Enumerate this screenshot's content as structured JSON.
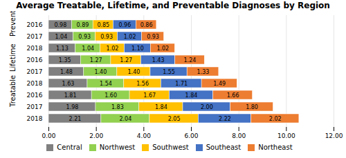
{
  "chart_data": {
    "type": "bar",
    "orientation": "horizontal",
    "stacked": true,
    "data_labels": true,
    "grid": true,
    "legend": "bottom",
    "title": "Average Treatable, Lifetime, and Preventable Diagnoses by Region",
    "group_labels": [
      "Preventable",
      "Lifetime",
      "Treatable"
    ],
    "categories": [
      "2016",
      "2017",
      "2018",
      "2016",
      "2017",
      "2018",
      "2016",
      "2017",
      "2018"
    ],
    "series": [
      {
        "name": "Central",
        "color": "#808080",
        "values": [
          0.98,
          1.04,
          1.13,
          1.35,
          1.48,
          1.63,
          1.81,
          1.98,
          2.21
        ],
        "value_labels": [
          "0.98",
          "1.04",
          "1.13",
          "1.35",
          "1.48",
          "1.63",
          "1.81",
          "1.98",
          "2.21"
        ]
      },
      {
        "name": "Northwest",
        "color": "#92d050",
        "values": [
          0.89,
          0.93,
          1.04,
          1.27,
          1.4,
          1.54,
          1.6,
          1.83,
          2.04
        ],
        "value_labels": [
          "0.89",
          "0.93",
          "1.04",
          "1.27",
          "1.40",
          "1.54",
          "1.60",
          "1.83",
          "2.04"
        ]
      },
      {
        "name": "Southwest",
        "color": "#ffc000",
        "values": [
          0.85,
          0.93,
          1.02,
          1.27,
          1.4,
          1.56,
          1.67,
          1.84,
          2.05
        ],
        "value_labels": [
          "0.85",
          "0.93",
          "1.02",
          "1.27",
          "1.40",
          "1.56",
          "1.67",
          "1.84",
          "2.05"
        ]
      },
      {
        "name": "Southeast",
        "color": "#4472c4",
        "values": [
          0.96,
          1.02,
          1.1,
          1.43,
          1.55,
          1.71,
          1.84,
          2.0,
          2.22
        ],
        "value_labels": [
          "0.96",
          "1.02",
          "1.10",
          "1.43",
          "1.55",
          "1.71",
          "1.84",
          "2.00",
          "2.22"
        ]
      },
      {
        "name": "Northeast",
        "color": "#ed7d31",
        "values": [
          0.86,
          0.93,
          1.02,
          1.24,
          1.33,
          1.49,
          1.66,
          1.8,
          2.02
        ],
        "value_labels": [
          "0.86",
          "0.93",
          "1.02",
          "1.24",
          "1.33",
          "1.49",
          "1.66",
          "1.80",
          "2.02"
        ]
      }
    ],
    "xlim": [
      0,
      12
    ],
    "xticks": [
      {
        "value": 0,
        "label": "0.00"
      },
      {
        "value": 2,
        "label": "2.00"
      },
      {
        "value": 4,
        "label": "4.00"
      },
      {
        "value": 6,
        "label": "6.00"
      },
      {
        "value": 8,
        "label": "8.00"
      },
      {
        "value": 10,
        "label": "10.00"
      },
      {
        "value": 12,
        "label": "12.00"
      }
    ]
  }
}
